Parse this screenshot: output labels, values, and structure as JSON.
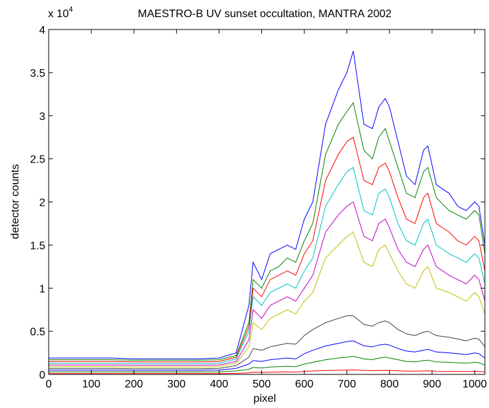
{
  "chart_data": {
    "type": "line",
    "title": "MAESTRO-B UV sunset occultation, MANTRA 2002",
    "xlabel": "pixel",
    "ylabel": "detector counts",
    "y_multiplier_text": "x 10",
    "y_multiplier_exponent": "4",
    "xlim": [
      0,
      1024
    ],
    "ylim": [
      0,
      40000
    ],
    "x_ticks": [
      0,
      100,
      200,
      300,
      400,
      500,
      600,
      700,
      800,
      900,
      1000
    ],
    "x_tick_labels": [
      "0",
      "100",
      "200",
      "300",
      "400",
      "500",
      "600",
      "700",
      "800",
      "900",
      "1000"
    ],
    "y_ticks": [
      0,
      5000,
      10000,
      15000,
      20000,
      25000,
      30000,
      35000,
      40000
    ],
    "y_tick_labels": [
      "0",
      "0.5",
      "1",
      "1.5",
      "2",
      "2.5",
      "3",
      "3.5",
      "4"
    ],
    "grid": false,
    "legend": "none",
    "series_colors": [
      "#0000ff",
      "#008000",
      "#ff0000",
      "#00bfbf",
      "#bf00bf",
      "#bfbf00",
      "#404040"
    ],
    "x": [
      0,
      50,
      100,
      150,
      200,
      250,
      300,
      350,
      400,
      440,
      470,
      480,
      500,
      520,
      540,
      560,
      580,
      600,
      620,
      650,
      680,
      700,
      715,
      740,
      760,
      775,
      790,
      800,
      820,
      840,
      860,
      880,
      890,
      910,
      940,
      960,
      980,
      1000,
      1010,
      1024
    ],
    "series": [
      {
        "values": [
          1900,
          1900,
          1900,
          1900,
          1800,
          1800,
          1800,
          1800,
          1900,
          2500,
          8000,
          13000,
          11000,
          14000,
          14500,
          15000,
          14500,
          18000,
          20000,
          29000,
          33000,
          35000,
          37500,
          29000,
          28500,
          31000,
          32000,
          31000,
          27000,
          23000,
          22000,
          26000,
          26500,
          22000,
          21000,
          19500,
          19000,
          20000,
          19500,
          15000
        ]
      },
      {
        "values": [
          1700,
          1700,
          1700,
          1700,
          1650,
          1650,
          1650,
          1650,
          1700,
          2200,
          6000,
          11000,
          10000,
          12000,
          12500,
          13500,
          13000,
          15500,
          17500,
          25500,
          29000,
          30500,
          31500,
          26000,
          25000,
          27500,
          28500,
          27000,
          24000,
          21000,
          20500,
          23500,
          24000,
          20500,
          19000,
          18500,
          18000,
          19000,
          18500,
          14000
        ]
      },
      {
        "values": [
          1500,
          1500,
          1500,
          1500,
          1450,
          1450,
          1450,
          1450,
          1500,
          2000,
          5500,
          10000,
          9000,
          11000,
          11500,
          12000,
          11500,
          14000,
          15500,
          22500,
          25500,
          27000,
          27500,
          22500,
          22000,
          24000,
          24500,
          23500,
          20500,
          18000,
          17500,
          20500,
          21000,
          17500,
          16500,
          15500,
          15000,
          16000,
          15500,
          12000
        ]
      },
      {
        "values": [
          1300,
          1300,
          1300,
          1300,
          1250,
          1250,
          1250,
          1250,
          1300,
          1800,
          5000,
          9000,
          8000,
          9500,
          10000,
          10500,
          10000,
          12000,
          13500,
          19500,
          22000,
          23500,
          24000,
          19000,
          18500,
          21000,
          21500,
          20500,
          17500,
          15500,
          15000,
          17500,
          18000,
          15000,
          14000,
          13500,
          13000,
          14000,
          13500,
          10500
        ]
      },
      {
        "values": [
          1100,
          1100,
          1100,
          1100,
          1050,
          1050,
          1050,
          1050,
          1100,
          1500,
          4000,
          7500,
          6500,
          8000,
          8500,
          9000,
          8500,
          10000,
          11500,
          16500,
          18500,
          19500,
          20000,
          16000,
          15500,
          17500,
          18000,
          17000,
          14500,
          13000,
          12500,
          14500,
          15000,
          12500,
          11500,
          11000,
          10500,
          11500,
          11000,
          8500
        ]
      },
      {
        "values": [
          900,
          900,
          900,
          900,
          850,
          850,
          850,
          850,
          900,
          1300,
          3200,
          6000,
          5200,
          6500,
          7000,
          7500,
          7000,
          8500,
          9500,
          13500,
          15000,
          16000,
          16500,
          13000,
          12500,
          14500,
          15000,
          14000,
          12000,
          10500,
          10000,
          12000,
          12500,
          10000,
          9500,
          9000,
          8500,
          9500,
          9000,
          7000
        ]
      },
      {
        "values": [
          700,
          700,
          700,
          700,
          650,
          650,
          650,
          650,
          700,
          1000,
          2000,
          3000,
          2800,
          3200,
          3400,
          3600,
          3500,
          4500,
          5200,
          6000,
          6500,
          6800,
          6800,
          5800,
          5600,
          6000,
          6200,
          6000,
          5200,
          4700,
          4500,
          4900,
          5000,
          4500,
          4300,
          4100,
          3900,
          4200,
          4100,
          3200
        ]
      },
      {
        "values": [
          500,
          500,
          500,
          500,
          480,
          480,
          480,
          480,
          500,
          700,
          1200,
          1600,
          1500,
          1700,
          1800,
          1900,
          1800,
          2400,
          2800,
          3300,
          3600,
          3800,
          3900,
          3300,
          3200,
          3400,
          3500,
          3400,
          3000,
          2700,
          2600,
          2800,
          2900,
          2600,
          2500,
          2400,
          2300,
          2500,
          2400,
          1900
        ]
      },
      {
        "values": [
          300,
          300,
          300,
          300,
          290,
          290,
          290,
          290,
          300,
          400,
          600,
          800,
          750,
          850,
          900,
          950,
          900,
          1200,
          1400,
          1700,
          1900,
          2000,
          2100,
          1800,
          1700,
          1900,
          2000,
          1900,
          1700,
          1500,
          1450,
          1600,
          1650,
          1450,
          1400,
          1350,
          1300,
          1400,
          1350,
          1100
        ]
      },
      {
        "values": [
          100,
          100,
          100,
          100,
          100,
          100,
          100,
          100,
          100,
          120,
          180,
          250,
          230,
          260,
          280,
          300,
          280,
          350,
          400,
          450,
          480,
          500,
          520,
          450,
          440,
          470,
          480,
          470,
          420,
          380,
          370,
          400,
          410,
          370,
          360,
          350,
          340,
          360,
          350,
          300
        ]
      }
    ]
  }
}
